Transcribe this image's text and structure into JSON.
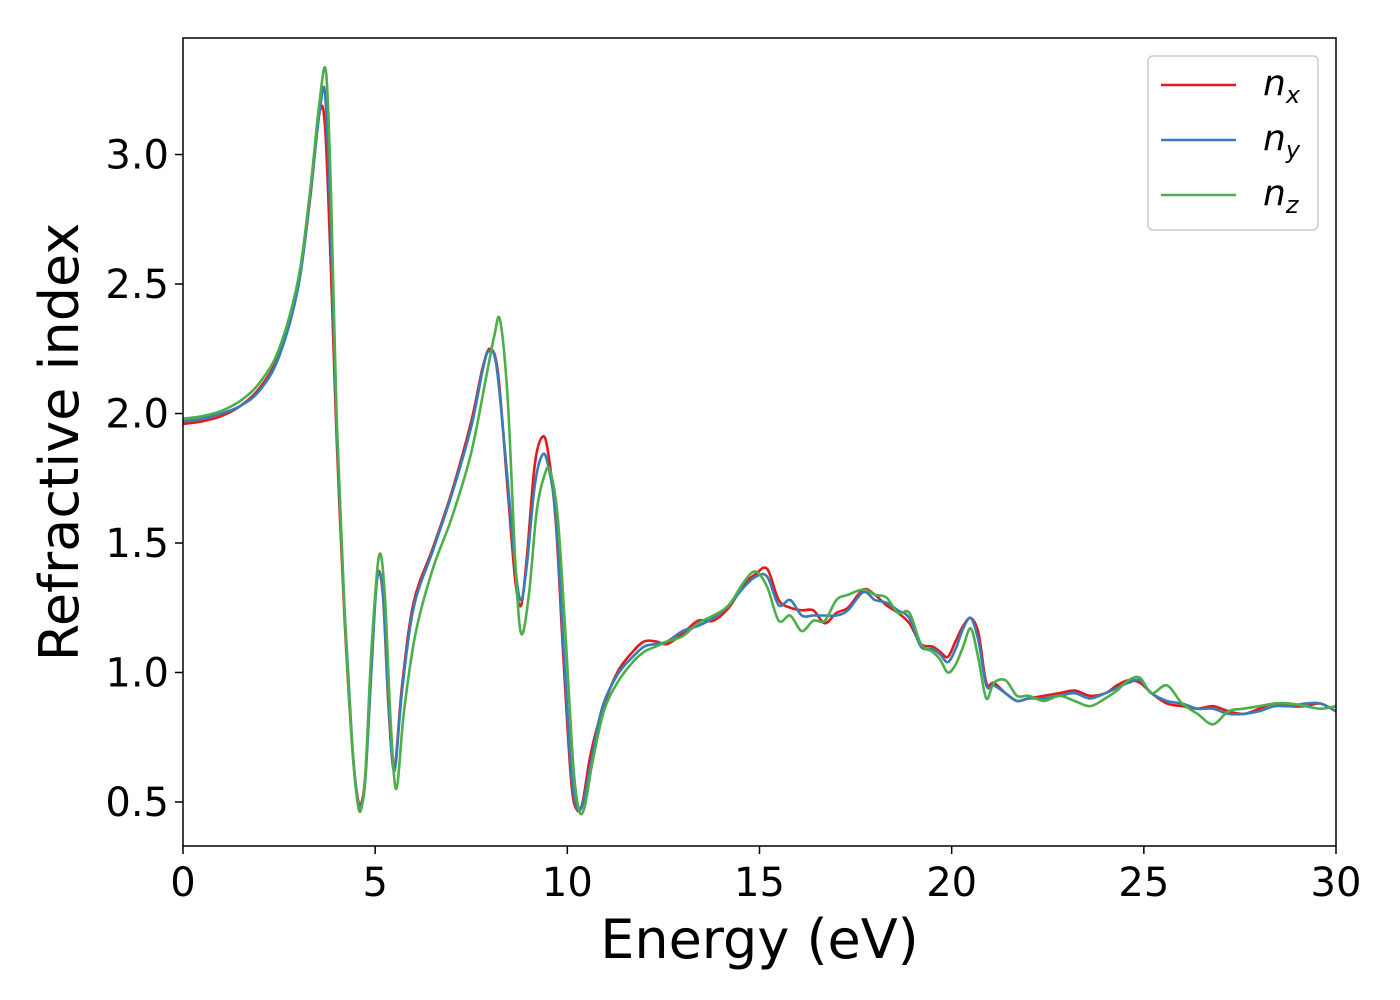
{
  "chart_data": {
    "type": "line",
    "title": "",
    "xlabel": "Energy (eV)",
    "ylabel": "Refractive index",
    "xlim": [
      0,
      30
    ],
    "ylim": [
      0.33,
      3.45
    ],
    "xticks": [
      0,
      5,
      10,
      15,
      20,
      25,
      30
    ],
    "yticks": [
      0.5,
      1.0,
      1.5,
      2.0,
      2.5,
      3.0
    ],
    "xtick_labels": [
      "0",
      "5",
      "10",
      "15",
      "20",
      "25",
      "30"
    ],
    "ytick_labels": [
      "0.5",
      "1.0",
      "1.5",
      "2.0",
      "2.5",
      "3.0"
    ],
    "grid": false,
    "legend_position": "top-right",
    "series": [
      {
        "name": "n_x",
        "label_base": "n",
        "label_sub": "x",
        "color": "#e41a1c",
        "x": [
          0,
          0.5,
          1.0,
          1.5,
          2.0,
          2.5,
          3.0,
          3.3,
          3.55,
          3.7,
          3.85,
          4.0,
          4.2,
          4.4,
          4.55,
          4.65,
          4.75,
          4.9,
          5.05,
          5.2,
          5.35,
          5.5,
          5.7,
          6.0,
          6.5,
          7.0,
          7.5,
          7.8,
          8.0,
          8.2,
          8.45,
          8.65,
          8.8,
          8.95,
          9.15,
          9.35,
          9.5,
          9.7,
          9.9,
          10.1,
          10.25,
          10.4,
          10.6,
          10.9,
          11.3,
          11.7,
          12.0,
          12.3,
          12.6,
          13.0,
          13.4,
          13.8,
          14.2,
          14.6,
          14.9,
          15.2,
          15.5,
          15.8,
          16.1,
          16.4,
          16.7,
          17.0,
          17.3,
          17.7,
          18.0,
          18.3,
          18.6,
          18.9,
          19.2,
          19.5,
          19.7,
          19.9,
          20.1,
          20.3,
          20.5,
          20.7,
          20.9,
          21.1,
          21.4,
          21.7,
          22.0,
          22.4,
          22.8,
          23.2,
          23.6,
          24.0,
          24.3,
          24.6,
          24.9,
          25.2,
          25.6,
          26.0,
          26.4,
          26.8,
          27.2,
          27.6,
          28.0,
          28.4,
          28.8,
          29.2,
          29.6,
          30.0
        ],
        "y": [
          1.96,
          1.97,
          1.99,
          2.03,
          2.1,
          2.23,
          2.5,
          2.82,
          3.16,
          3.1,
          2.55,
          1.9,
          1.22,
          0.72,
          0.51,
          0.5,
          0.62,
          1.02,
          1.37,
          1.3,
          0.86,
          0.63,
          0.95,
          1.27,
          1.48,
          1.7,
          1.97,
          2.18,
          2.25,
          2.15,
          1.7,
          1.35,
          1.26,
          1.45,
          1.8,
          1.91,
          1.85,
          1.58,
          1.05,
          0.58,
          0.47,
          0.5,
          0.68,
          0.85,
          1.0,
          1.08,
          1.12,
          1.12,
          1.11,
          1.15,
          1.2,
          1.2,
          1.25,
          1.34,
          1.38,
          1.4,
          1.28,
          1.25,
          1.24,
          1.24,
          1.19,
          1.23,
          1.25,
          1.32,
          1.3,
          1.26,
          1.23,
          1.19,
          1.11,
          1.1,
          1.08,
          1.06,
          1.12,
          1.18,
          1.21,
          1.15,
          0.96,
          0.96,
          0.92,
          0.89,
          0.9,
          0.91,
          0.92,
          0.93,
          0.91,
          0.92,
          0.95,
          0.97,
          0.96,
          0.92,
          0.88,
          0.87,
          0.86,
          0.87,
          0.85,
          0.84,
          0.86,
          0.88,
          0.87,
          0.87,
          0.88,
          0.85
        ]
      },
      {
        "name": "n_y",
        "label_base": "n",
        "label_sub": "y",
        "color": "#377eb8",
        "x": [
          0,
          0.5,
          1.0,
          1.5,
          2.0,
          2.5,
          3.0,
          3.3,
          3.55,
          3.7,
          3.85,
          4.0,
          4.2,
          4.4,
          4.55,
          4.65,
          4.75,
          4.9,
          5.05,
          5.2,
          5.35,
          5.5,
          5.7,
          6.0,
          6.5,
          7.0,
          7.5,
          7.8,
          7.95,
          8.15,
          8.4,
          8.65,
          8.8,
          8.95,
          9.15,
          9.35,
          9.5,
          9.7,
          9.9,
          10.1,
          10.25,
          10.4,
          10.6,
          10.9,
          11.3,
          11.7,
          12.0,
          12.3,
          12.6,
          13.0,
          13.4,
          13.8,
          14.2,
          14.6,
          14.9,
          15.2,
          15.5,
          15.8,
          16.1,
          16.4,
          16.7,
          17.0,
          17.3,
          17.7,
          18.0,
          18.3,
          18.6,
          18.9,
          19.2,
          19.5,
          19.7,
          19.9,
          20.1,
          20.3,
          20.5,
          20.7,
          20.9,
          21.1,
          21.4,
          21.7,
          22.0,
          22.4,
          22.8,
          23.2,
          23.6,
          24.0,
          24.3,
          24.6,
          24.9,
          25.2,
          25.6,
          26.0,
          26.4,
          26.8,
          27.2,
          27.6,
          28.0,
          28.4,
          28.8,
          29.2,
          29.6,
          30.0
        ],
        "y": [
          1.97,
          1.98,
          2.0,
          2.03,
          2.09,
          2.22,
          2.49,
          2.83,
          3.16,
          3.23,
          2.7,
          1.95,
          1.25,
          0.73,
          0.5,
          0.49,
          0.6,
          1.0,
          1.36,
          1.31,
          0.88,
          0.62,
          0.93,
          1.25,
          1.47,
          1.69,
          1.95,
          2.17,
          2.24,
          2.19,
          1.82,
          1.4,
          1.28,
          1.42,
          1.72,
          1.84,
          1.8,
          1.6,
          1.1,
          0.62,
          0.48,
          0.49,
          0.64,
          0.86,
          0.99,
          1.06,
          1.1,
          1.11,
          1.12,
          1.16,
          1.18,
          1.21,
          1.26,
          1.33,
          1.37,
          1.37,
          1.26,
          1.28,
          1.22,
          1.22,
          1.22,
          1.22,
          1.24,
          1.31,
          1.28,
          1.27,
          1.24,
          1.21,
          1.1,
          1.09,
          1.07,
          1.04,
          1.09,
          1.17,
          1.21,
          1.12,
          0.95,
          0.95,
          0.92,
          0.89,
          0.9,
          0.9,
          0.91,
          0.92,
          0.9,
          0.92,
          0.94,
          0.96,
          0.97,
          0.92,
          0.89,
          0.88,
          0.86,
          0.86,
          0.84,
          0.84,
          0.85,
          0.87,
          0.87,
          0.88,
          0.88,
          0.85
        ]
      },
      {
        "name": "n_z",
        "label_base": "n",
        "label_sub": "z",
        "color": "#4daf4a",
        "x": [
          0,
          0.5,
          1.0,
          1.5,
          2.0,
          2.5,
          3.0,
          3.3,
          3.55,
          3.72,
          3.85,
          4.0,
          4.2,
          4.4,
          4.55,
          4.65,
          4.75,
          4.9,
          5.1,
          5.25,
          5.4,
          5.55,
          5.75,
          6.05,
          6.5,
          7.0,
          7.5,
          7.9,
          8.1,
          8.25,
          8.45,
          8.65,
          8.8,
          9.0,
          9.2,
          9.4,
          9.55,
          9.75,
          9.95,
          10.15,
          10.3,
          10.45,
          10.65,
          10.95,
          11.3,
          11.7,
          12.0,
          12.3,
          12.6,
          13.0,
          13.4,
          13.8,
          14.2,
          14.6,
          14.9,
          15.2,
          15.5,
          15.8,
          16.1,
          16.4,
          16.7,
          17.0,
          17.3,
          17.7,
          18.0,
          18.3,
          18.6,
          18.9,
          19.2,
          19.5,
          19.7,
          19.9,
          20.1,
          20.3,
          20.5,
          20.7,
          20.9,
          21.1,
          21.4,
          21.7,
          22.0,
          22.4,
          22.8,
          23.2,
          23.6,
          24.0,
          24.3,
          24.6,
          24.9,
          25.2,
          25.6,
          26.0,
          26.4,
          26.8,
          27.2,
          27.6,
          28.0,
          28.4,
          28.8,
          29.2,
          29.6,
          30.0
        ],
        "y": [
          1.98,
          1.99,
          2.01,
          2.05,
          2.12,
          2.25,
          2.52,
          2.85,
          3.2,
          3.32,
          2.85,
          1.98,
          1.25,
          0.72,
          0.49,
          0.48,
          0.62,
          1.08,
          1.45,
          1.3,
          0.82,
          0.55,
          0.85,
          1.15,
          1.4,
          1.6,
          1.85,
          2.15,
          2.3,
          2.36,
          2.05,
          1.42,
          1.15,
          1.3,
          1.62,
          1.76,
          1.78,
          1.6,
          1.15,
          0.65,
          0.47,
          0.48,
          0.65,
          0.85,
          0.96,
          1.04,
          1.08,
          1.1,
          1.12,
          1.14,
          1.19,
          1.22,
          1.26,
          1.35,
          1.39,
          1.33,
          1.2,
          1.22,
          1.16,
          1.2,
          1.2,
          1.28,
          1.3,
          1.32,
          1.3,
          1.29,
          1.23,
          1.23,
          1.11,
          1.08,
          1.05,
          1.0,
          1.03,
          1.1,
          1.17,
          1.05,
          0.9,
          0.96,
          0.97,
          0.91,
          0.91,
          0.89,
          0.91,
          0.89,
          0.87,
          0.9,
          0.93,
          0.97,
          0.98,
          0.92,
          0.95,
          0.88,
          0.84,
          0.8,
          0.85,
          0.86,
          0.87,
          0.88,
          0.88,
          0.87,
          0.86,
          0.87
        ]
      }
    ]
  }
}
